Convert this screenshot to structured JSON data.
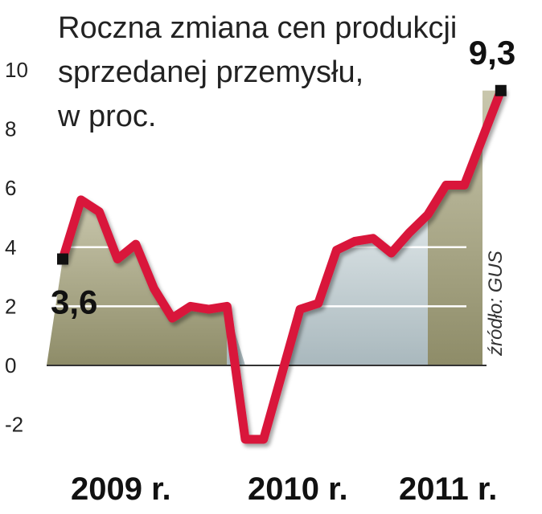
{
  "chart_data": {
    "type": "line",
    "title_lines": [
      "Roczna zmiana cen produkcji",
      "sprzedanej przemysłu,",
      "w proc."
    ],
    "source": "źródło: GUS",
    "ylim": [
      -3,
      11
    ],
    "yticks": [
      "10",
      "8",
      "6",
      "4",
      "2",
      "0",
      "-2"
    ],
    "ytick_values": [
      10,
      8,
      6,
      4,
      2,
      0,
      -2
    ],
    "xtick_labels": [
      "2009 r.",
      "2010 r.",
      "2011 r."
    ],
    "series": [
      {
        "values": [
          3.6,
          5.6,
          5.2,
          3.6,
          4.1,
          2.6,
          1.6,
          2.0,
          1.9,
          2.0,
          -2.5,
          -2.5,
          -0.3,
          1.9,
          2.1,
          3.9,
          4.2,
          4.3,
          3.8,
          4.5,
          5.1,
          6.1,
          6.1,
          7.7,
          9.3
        ]
      }
    ],
    "year_shading": [
      {
        "label": "2009 r.",
        "color": "#b5b394"
      },
      {
        "label": "2010 r.",
        "color": "#c6d1d4"
      },
      {
        "label": "2011 r.",
        "color": "#b5b394"
      }
    ],
    "data_labels": [
      {
        "index": 0,
        "text": "3,6"
      },
      {
        "index": 24,
        "text": "9,3"
      }
    ],
    "line_color": "#d9143a",
    "grid": true
  }
}
